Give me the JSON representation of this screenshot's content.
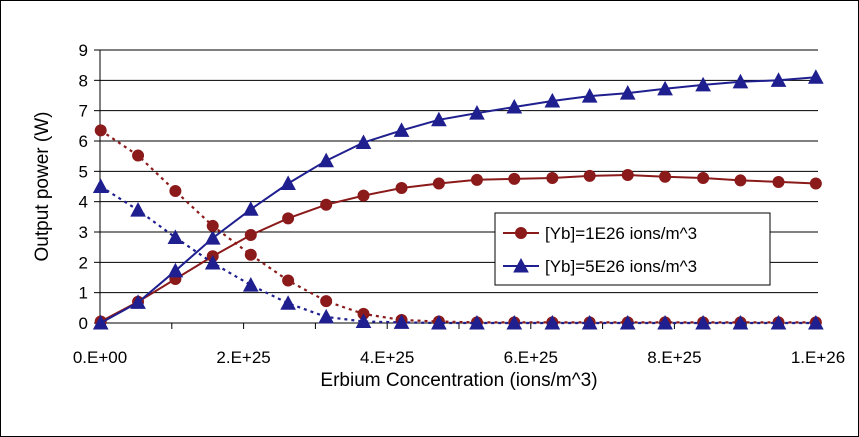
{
  "chart_data": {
    "type": "line",
    "title": "",
    "xlabel": "Erbium Concentration (ions/m^3)",
    "ylabel": "Output power (W)",
    "xlim": [
      0,
      1e+26
    ],
    "ylim": [
      0,
      9
    ],
    "x_ticks": [
      {
        "value": 0,
        "label": "0.E+00"
      },
      {
        "value": 2e+25,
        "label": "2.E+25"
      },
      {
        "value": 4e+25,
        "label": "4.E+25"
      },
      {
        "value": 6e+25,
        "label": "6.E+25"
      },
      {
        "value": 8e+25,
        "label": "8.E+25"
      },
      {
        "value": 1e+26,
        "label": "1.E+26"
      }
    ],
    "y_ticks": [
      {
        "value": 0,
        "label": "0"
      },
      {
        "value": 1,
        "label": "1"
      },
      {
        "value": 2,
        "label": "2"
      },
      {
        "value": 3,
        "label": "3"
      },
      {
        "value": 4,
        "label": "4"
      },
      {
        "value": 5,
        "label": "5"
      },
      {
        "value": 6,
        "label": "6"
      },
      {
        "value": 7,
        "label": "7"
      },
      {
        "value": 8,
        "label": "8"
      },
      {
        "value": 9,
        "label": "9"
      }
    ],
    "grid": "horizontal",
    "legend_position": "right",
    "x": [
      1e+23,
      5.3e+24,
      1.05e+25,
      1.57e+25,
      2.1e+25,
      2.62e+25,
      3.15e+25,
      3.67e+25,
      4.2e+25,
      4.72e+25,
      5.25e+25,
      5.77e+25,
      6.3e+25,
      6.82e+25,
      7.35e+25,
      7.87e+25,
      8.4e+25,
      8.92e+25,
      9.45e+25,
      9.97e+25
    ],
    "series": [
      {
        "name": "[Yb]=1E26 ions/m^3",
        "color": "#8B1A1A",
        "marker": "circle",
        "line": "solid",
        "values": [
          0.05,
          0.7,
          1.45,
          2.2,
          2.9,
          3.45,
          3.9,
          4.2,
          4.45,
          4.6,
          4.72,
          4.75,
          4.78,
          4.85,
          4.88,
          4.82,
          4.78,
          4.7,
          4.65,
          4.6
        ]
      },
      {
        "name": "[Yb]=5E26 ions/m^3",
        "color": "#1F1F8F",
        "marker": "triangle",
        "line": "solid",
        "values": [
          0.0,
          0.68,
          1.72,
          2.8,
          3.75,
          4.6,
          5.35,
          5.95,
          6.35,
          6.7,
          6.92,
          7.12,
          7.32,
          7.48,
          7.58,
          7.72,
          7.85,
          7.95,
          8.0,
          8.1
        ]
      },
      {
        "name": "",
        "color": "#8B1A1A",
        "marker": "circle",
        "line": "dotted",
        "values": [
          6.35,
          5.52,
          4.35,
          3.2,
          2.25,
          1.4,
          0.72,
          0.3,
          0.1,
          0.05,
          0.02,
          0.02,
          0.02,
          0.02,
          0.02,
          0.02,
          0.02,
          0.02,
          0.02,
          0.02
        ]
      },
      {
        "name": "",
        "color": "#1F1F8F",
        "marker": "triangle",
        "line": "dotted",
        "values": [
          4.5,
          3.72,
          2.82,
          1.98,
          1.25,
          0.65,
          0.2,
          0.05,
          0.02,
          0.0,
          0.0,
          0.0,
          0.0,
          0.0,
          0.0,
          0.0,
          0.0,
          0.0,
          0.0,
          0.0
        ]
      }
    ]
  }
}
